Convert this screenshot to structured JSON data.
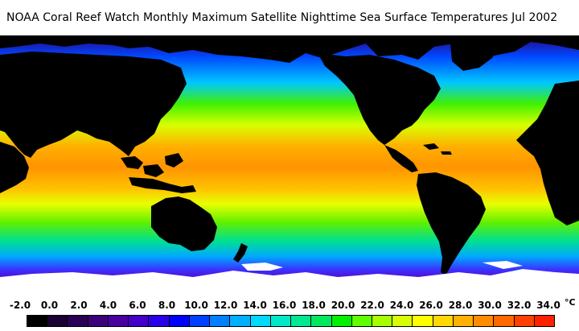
{
  "title": "NOAA Coral Reef Watch Monthly Maximum Satellite Nighttime Sea Surface Temperatures     Jul 2002",
  "map": {
    "colors": {
      "land": "#000000",
      "ice": "#ffffff",
      "tropical_ocean": "#ff9a00",
      "warm_ocean": "#ffd800",
      "temperate_ocean": "#7cff00",
      "cool_ocean": "#00d4a0",
      "cold_ocean": "#0060ff",
      "polar_ocean": "#3a00b0",
      "frozen_ocean": "#200060"
    }
  },
  "legend": {
    "unit": "°C",
    "ticks": [
      "-2.0",
      "0.0",
      "2.0",
      "4.0",
      "6.0",
      "8.0",
      "10.0",
      "12.0",
      "14.0",
      "16.0",
      "18.0",
      "20.0",
      "22.0",
      "24.0",
      "26.0",
      "28.0",
      "30.0",
      "32.0",
      "34.0"
    ],
    "swatches": [
      "#000000",
      "#1a0033",
      "#2a0055",
      "#3b007a",
      "#4a00a0",
      "#4400c8",
      "#2a00e8",
      "#0000ff",
      "#0040ff",
      "#0080ff",
      "#00b0ff",
      "#00d8ff",
      "#00e8c8",
      "#00e890",
      "#00e860",
      "#00f000",
      "#60ff00",
      "#a8ff00",
      "#d8ff00",
      "#ffff00",
      "#ffd800",
      "#ffb000",
      "#ff8c00",
      "#ff6800",
      "#ff4000",
      "#ff2000"
    ]
  }
}
